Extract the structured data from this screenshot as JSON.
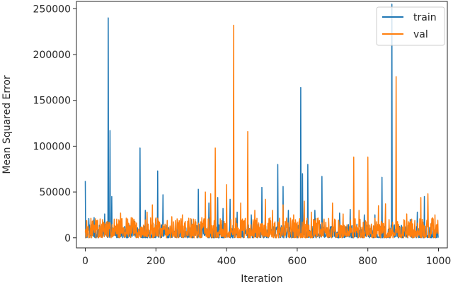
{
  "chart_data": {
    "type": "line",
    "title": "",
    "xlabel": "Iteration",
    "ylabel": "Mean Squared Error",
    "xlim": [
      -25,
      1025
    ],
    "ylim": [
      -11000,
      258000
    ],
    "xticks": [
      0,
      200,
      400,
      600,
      800,
      1000
    ],
    "xtick_labels": [
      "0",
      "200",
      "400",
      "600",
      "800",
      "1000"
    ],
    "yticks": [
      0,
      50000,
      100000,
      150000,
      200000,
      250000
    ],
    "ytick_labels": [
      "0",
      "50000",
      "100000",
      "150000",
      "200000",
      "250000"
    ],
    "grid": false,
    "legend_position": "top-right",
    "series": [
      {
        "name": "train",
        "color": "#1f77b4",
        "baseline_range": [
          0,
          15000
        ],
        "spikes": [
          [
            0,
            62000
          ],
          [
            10,
            21000
          ],
          [
            25,
            22000
          ],
          [
            55,
            26000
          ],
          [
            65,
            240000
          ],
          [
            70,
            117000
          ],
          [
            75,
            45000
          ],
          [
            100,
            20000
          ],
          [
            140,
            18000
          ],
          [
            155,
            98000
          ],
          [
            170,
            30000
          ],
          [
            205,
            73000
          ],
          [
            220,
            47000
          ],
          [
            260,
            17000
          ],
          [
            300,
            20000
          ],
          [
            320,
            53000
          ],
          [
            350,
            38000
          ],
          [
            375,
            44000
          ],
          [
            390,
            32000
          ],
          [
            410,
            42000
          ],
          [
            430,
            28000
          ],
          [
            470,
            25000
          ],
          [
            500,
            55000
          ],
          [
            530,
            20000
          ],
          [
            545,
            80000
          ],
          [
            560,
            56000
          ],
          [
            575,
            30000
          ],
          [
            610,
            164000
          ],
          [
            615,
            70000
          ],
          [
            630,
            80000
          ],
          [
            650,
            30000
          ],
          [
            670,
            67000
          ],
          [
            700,
            20000
          ],
          [
            720,
            27000
          ],
          [
            750,
            31000
          ],
          [
            790,
            25000
          ],
          [
            820,
            25000
          ],
          [
            840,
            66000
          ],
          [
            868,
            255000
          ],
          [
            880,
            26000
          ],
          [
            920,
            20000
          ],
          [
            940,
            28000
          ],
          [
            960,
            45000
          ],
          [
            980,
            16000
          ],
          [
            998,
            8000
          ]
        ]
      },
      {
        "name": "val",
        "color": "#ff7f0e",
        "baseline_range": [
          0,
          22000
        ],
        "spikes": [
          [
            20,
            18000
          ],
          [
            60,
            17000
          ],
          [
            100,
            27000
          ],
          [
            130,
            22000
          ],
          [
            175,
            28000
          ],
          [
            190,
            36000
          ],
          [
            245,
            23000
          ],
          [
            275,
            25000
          ],
          [
            330,
            22000
          ],
          [
            340,
            50000
          ],
          [
            355,
            48000
          ],
          [
            368,
            98000
          ],
          [
            400,
            58000
          ],
          [
            420,
            232000
          ],
          [
            440,
            38000
          ],
          [
            460,
            116000
          ],
          [
            480,
            30000
          ],
          [
            510,
            42000
          ],
          [
            530,
            30000
          ],
          [
            560,
            36000
          ],
          [
            590,
            25000
          ],
          [
            620,
            40000
          ],
          [
            640,
            28000
          ],
          [
            700,
            38000
          ],
          [
            730,
            26000
          ],
          [
            760,
            88000
          ],
          [
            775,
            30000
          ],
          [
            800,
            88000
          ],
          [
            830,
            35000
          ],
          [
            850,
            37000
          ],
          [
            880,
            176000
          ],
          [
            910,
            26000
          ],
          [
            950,
            44000
          ],
          [
            970,
            48000
          ],
          [
            990,
            25000
          ]
        ]
      }
    ]
  }
}
